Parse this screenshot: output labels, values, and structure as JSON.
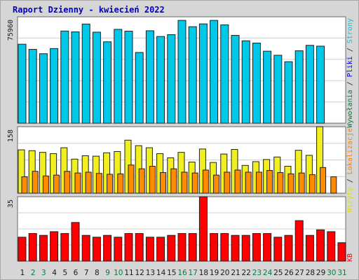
{
  "title": "Raport Dzienny -  kwiecień 2022",
  "colors": {
    "background": "#d6d6d6",
    "title": "#0000c0",
    "visits": "#00c8e8",
    "pages": "#00c8e8",
    "files": "#0000ff",
    "hits": "#008040",
    "sites": "#f0f020",
    "kbytes": "#ff0000",
    "weekday_tick": "#1a1a1a",
    "weekend_tick": "#008040"
  },
  "legend": {
    "top": [
      {
        "label": "Wywołania",
        "color": "#008040"
      },
      {
        "label": "Pliki",
        "color": "#0000ff"
      },
      {
        "label": "Strony",
        "color": "#00c8e8"
      }
    ],
    "middle": [
      {
        "label": "Wizyty",
        "color": "#e0e000"
      },
      {
        "label": "Lokalizacje",
        "color": "#ff8000"
      }
    ],
    "bottom": [
      {
        "label": "KB",
        "color": "#ff0000"
      }
    ],
    "separator": "/"
  },
  "chart_data": [
    {
      "type": "bar",
      "panel": "top",
      "ymax_label": "75960",
      "ylim": [
        0,
        75960
      ],
      "categories": [
        "1",
        "2",
        "3",
        "4",
        "5",
        "6",
        "7",
        "8",
        "9",
        "10",
        "11",
        "12",
        "13",
        "14",
        "15",
        "16",
        "17",
        "18",
        "19",
        "20",
        "21",
        "22",
        "23",
        "24",
        "25",
        "26",
        "27",
        "28",
        "29",
        "30",
        "31"
      ],
      "weekend_days": [
        "2",
        "3",
        "9",
        "10",
        "16",
        "17",
        "23",
        "24",
        "30",
        "31"
      ],
      "values": [
        56400,
        52700,
        49600,
        53300,
        65800,
        65200,
        70800,
        65000,
        58100,
        67000,
        65700,
        50500,
        66000,
        61900,
        63200,
        73400,
        68900,
        70900,
        73400,
        70200,
        62700,
        58800,
        57200,
        51400,
        48500,
        43900,
        51700,
        55600,
        null,
        null,
        null
      ],
      "values_inner": [
        null,
        null,
        null,
        null,
        null,
        null,
        null,
        null,
        null,
        null,
        null,
        null,
        null,
        null,
        null,
        null,
        null,
        null,
        null,
        null,
        null,
        null,
        null,
        null,
        null,
        null,
        null,
        null,
        55000,
        null,
        null
      ],
      "series": [
        {
          "name": "Strony",
          "values": [
            56400,
            52700,
            49600,
            53300,
            65800,
            65200,
            70800,
            65000,
            58100,
            67000,
            65700,
            50500,
            66000,
            61900,
            63200,
            73400,
            68900,
            70900,
            73400,
            70200,
            62700,
            58800,
            57200,
            51400,
            48500,
            43900,
            51700,
            55600,
            55000,
            null,
            null
          ]
        }
      ],
      "overlay_light": [
        38000,
        36000,
        34000,
        36000,
        44000,
        44000,
        48000,
        44000,
        39000,
        45000,
        45000,
        34000,
        45000,
        42000,
        43000,
        50000,
        47000,
        48000,
        50000,
        48000,
        42000,
        40000,
        39000,
        35000,
        33000,
        30000,
        35000,
        38000,
        37000,
        null,
        null
      ]
    },
    {
      "type": "bar",
      "panel": "middle",
      "ymax_label": "158",
      "ylim": [
        0,
        158
      ],
      "categories": [
        "1",
        "2",
        "3",
        "4",
        "5",
        "6",
        "7",
        "8",
        "9",
        "10",
        "11",
        "12",
        "13",
        "14",
        "15",
        "16",
        "17",
        "18",
        "19",
        "20",
        "21",
        "22",
        "23",
        "24",
        "25",
        "26",
        "27",
        "28",
        "29",
        "30",
        "31"
      ],
      "series": [
        {
          "name": "Wizyty",
          "values": [
            103,
            101,
            97,
            94,
            108,
            81,
            89,
            88,
            96,
            99,
            126,
            113,
            108,
            94,
            84,
            97,
            74,
            105,
            73,
            93,
            104,
            66,
            75,
            80,
            86,
            64,
            102,
            90,
            158,
            null,
            null
          ]
        },
        {
          "name": "Lokalizacje",
          "values": [
            39,
            52,
            41,
            43,
            52,
            48,
            50,
            47,
            45,
            46,
            67,
            58,
            64,
            49,
            58,
            50,
            48,
            55,
            43,
            50,
            55,
            50,
            50,
            54,
            49,
            46,
            48,
            44,
            61,
            39,
            null
          ]
        }
      ]
    },
    {
      "type": "bar",
      "panel": "bottom",
      "ymax_label": "35",
      "ylim": [
        0,
        35
      ],
      "categories": [
        "1",
        "2",
        "3",
        "4",
        "5",
        "6",
        "7",
        "8",
        "9",
        "10",
        "11",
        "12",
        "13",
        "14",
        "15",
        "16",
        "17",
        "18",
        "19",
        "20",
        "21",
        "22",
        "23",
        "24",
        "25",
        "26",
        "27",
        "28",
        "29",
        "30",
        "31"
      ],
      "series": [
        {
          "name": "KB",
          "values": [
            13,
            15,
            14,
            16,
            15,
            21,
            14,
            13,
            14,
            13,
            15,
            15,
            13,
            13,
            14,
            15,
            15,
            35,
            15,
            15,
            14,
            14,
            15,
            15,
            13,
            14,
            22,
            14,
            17,
            16,
            10
          ]
        }
      ]
    }
  ]
}
